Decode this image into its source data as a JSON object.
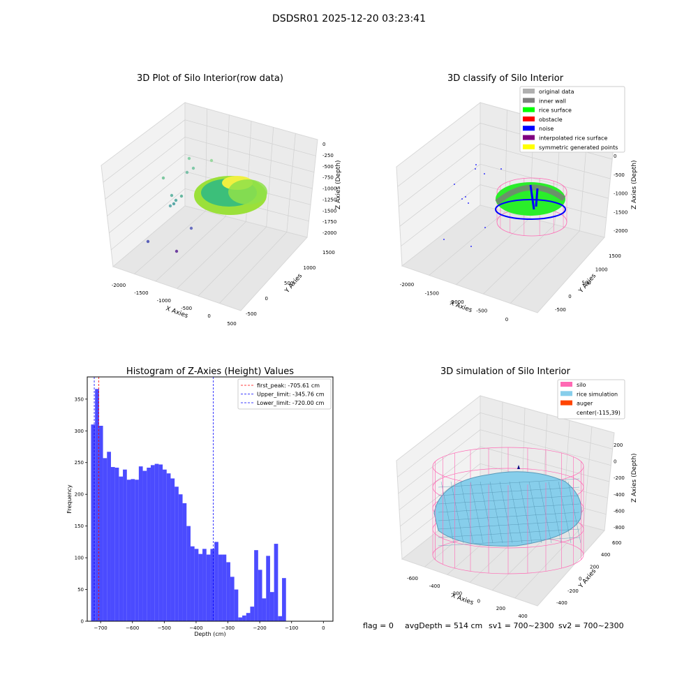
{
  "suptitle": "DSDSR01 2025-12-20 03:23:41",
  "status_line": {
    "flag": "flag = 0",
    "avg_depth": "avgDepth = 514 cm",
    "sv1": "sv1 = 700~2300",
    "sv2": "sv2 = 700~2300"
  },
  "colors": {
    "histogram_bar": "#4b4bff",
    "first_peak_line": "#ff0000",
    "limit_line": "#0000ff",
    "silo_wire": "#ff69b4",
    "rice_surface": "#87ceeb",
    "inner_wall": "#808080",
    "rice_points": "#00ff00",
    "noise": "#0000ff"
  },
  "chart_data": [
    {
      "type": "scatter",
      "title": "3D Plot of Silo Interior(row data)",
      "xlabel": "X Axies",
      "ylabel": "Y Axies",
      "zlabel": "Z Axies (Depth)",
      "x_ticks": [
        "-2000",
        "-1500",
        "-1000",
        "-500",
        "0",
        "500"
      ],
      "y_ticks": [
        "-500",
        "0",
        "500",
        "1000",
        "1500"
      ],
      "z_ticks": [
        "0",
        "-250",
        "-500",
        "-750",
        "-1000",
        "-1250",
        "-1500",
        "-1750",
        "-2000"
      ],
      "xlim": [
        -2200,
        600
      ],
      "ylim": [
        -600,
        1700
      ],
      "zlim": [
        -2100,
        100
      ],
      "grid": true
    },
    {
      "type": "scatter",
      "title": "3D classify of Silo Interior",
      "xlabel": "X Axies",
      "ylabel": "Y Axies",
      "zlabel": "Z Axies (Depth)",
      "x_ticks": [
        "-2000",
        "-1500",
        "-1000",
        "-500",
        "0"
      ],
      "y_ticks": [
        "-500",
        "0",
        "500",
        "1000",
        "1500"
      ],
      "z_ticks": [
        "0",
        "-500",
        "-1000",
        "-1500",
        "-2000"
      ],
      "legend_position": "top-right",
      "legend": [
        {
          "label": "original data",
          "color": "#b0b0b0"
        },
        {
          "label": "inner wall",
          "color": "#808080"
        },
        {
          "label": "rice surface",
          "color": "#00ff00"
        },
        {
          "label": "obstacle",
          "color": "#ff0000"
        },
        {
          "label": "noise",
          "color": "#0000ff"
        },
        {
          "label": "interpolated rice surface",
          "color": "#800080"
        },
        {
          "label": "symmetric generated points",
          "color": "#ffff00"
        }
      ],
      "grid": true
    },
    {
      "type": "bar",
      "title": "Histogram of Z-Axies (Height) Values",
      "xlabel": "Depth (cm)",
      "ylabel": "Frequency",
      "xlim": [
        -742,
        30
      ],
      "ylim": [
        0,
        385
      ],
      "bin_start": -730,
      "bin_width": 12.5,
      "values": [
        310,
        366,
        308,
        257,
        267,
        243,
        242,
        228,
        239,
        223,
        224,
        223,
        244,
        237,
        242,
        246,
        248,
        247,
        239,
        233,
        225,
        212,
        200,
        186,
        150,
        118,
        114,
        106,
        114,
        105,
        114,
        125,
        105,
        105,
        93,
        70,
        50,
        6,
        9,
        13,
        23,
        112,
        81,
        36,
        103,
        46,
        122,
        8,
        68
      ],
      "x_ticks": [
        "−700",
        "−600",
        "−500",
        "−400",
        "−300",
        "−200",
        "−100",
        "0"
      ],
      "x_tick_values": [
        -700,
        -600,
        -500,
        -400,
        -300,
        -200,
        -100,
        0
      ],
      "y_ticks": [
        "0",
        "50",
        "100",
        "150",
        "200",
        "250",
        "300",
        "350"
      ],
      "y_tick_values": [
        0,
        50,
        100,
        150,
        200,
        250,
        300,
        350
      ],
      "lines": [
        {
          "label": "first_peak: -705.61 cm",
          "x": -705.61,
          "color": "#ff0000"
        },
        {
          "label": "Upper_limit: -345.76 cm",
          "x": -345.76,
          "color": "#0000ff"
        },
        {
          "label": "Lower_limit: -720.00 cm",
          "x": -720.0,
          "color": "#0000ff"
        }
      ],
      "legend_position": "top-right",
      "grid": false
    },
    {
      "type": "scatter",
      "title": "3D simulation of Silo Interior",
      "xlabel": "X Axies",
      "ylabel": "Y Axies",
      "zlabel": "Z Axies (Depth)",
      "x_ticks": [
        "-600",
        "-400",
        "-200",
        "0",
        "200",
        "400"
      ],
      "y_ticks": [
        "-400",
        "-200",
        "0",
        "200",
        "400",
        "600"
      ],
      "z_ticks": [
        "200",
        "0",
        "-200",
        "-400",
        "-600",
        "-800"
      ],
      "legend_position": "top-right",
      "legend": [
        {
          "label": "silo",
          "color": "#ff69b4"
        },
        {
          "label": "rice simulation",
          "color": "#87ceeb"
        },
        {
          "label": "auger",
          "color": "#ff4500"
        },
        {
          "label": "center(-115,39)",
          "color": ""
        }
      ],
      "grid": true
    }
  ]
}
